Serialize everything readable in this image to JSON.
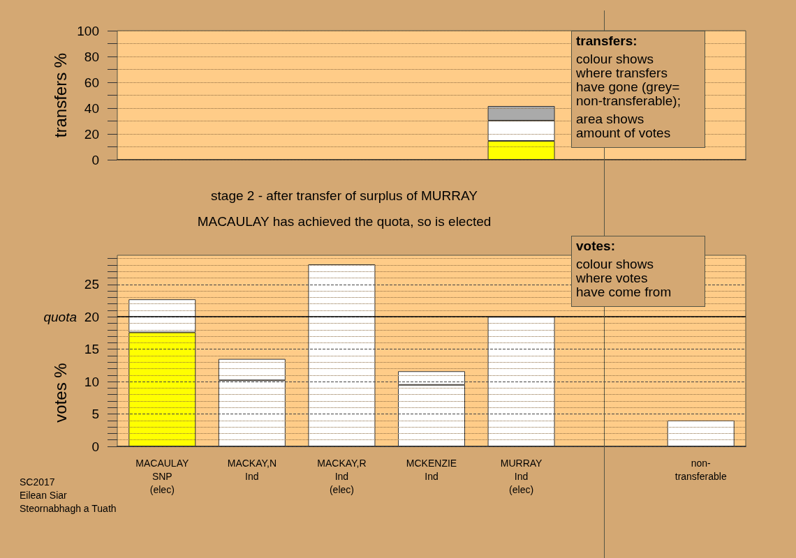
{
  "chart_data": [
    {
      "type": "bar",
      "ylabel": "transfers %",
      "categories": [
        null,
        null,
        null,
        null,
        null,
        null,
        null
      ],
      "stacked": true,
      "ylim": [
        0,
        100
      ],
      "yticks": [
        0,
        {
          "value": 10,
          "label": null
        },
        20,
        {
          "value": 30,
          "label": null
        },
        40,
        {
          "value": 50,
          "label": null
        },
        60,
        {
          "value": 70,
          "label": null
        },
        80,
        {
          "value": 90,
          "label": null
        },
        100
      ],
      "grid": "y",
      "tick_labels": "y",
      "series": [
        {
          "color": "#ffff00",
          "values": [
            null,
            null,
            null,
            null,
            14.6,
            null,
            null
          ]
        },
        {
          "color": "#ffffff",
          "values": [
            null,
            null,
            null,
            null,
            15.7,
            null,
            null
          ]
        },
        {
          "color": "#aaaaaa",
          "values": [
            null,
            null,
            null,
            null,
            11.3,
            null,
            null
          ]
        }
      ],
      "annotations": [
        "transfers:",
        "colour shows\nwhere transfers\nhave gone (grey=\nnon-transferable);",
        "area shows\namount of votes"
      ]
    },
    {
      "type": "bar",
      "title": "stage 2 - after transfer of surplus of MURRAY",
      "subtitle": "MACAULAY has achieved the quota, so is elected",
      "ylabel": "votes %",
      "categories": [
        "MACAULAY\nSNP\n(elec)",
        "MACKAY,N\nInd",
        "MACKAY,R\nInd\n(elec)",
        "MCKENZIE\nInd",
        "MURRAY\nInd\n(elec)",
        null,
        "non-\ntransferable"
      ],
      "stacked": true,
      "ylim": [
        0,
        29.5
      ],
      "yticks": [
        0,
        {
          "value": 1,
          "label": null
        },
        {
          "value": 2,
          "label": null
        },
        {
          "value": 3,
          "label": null
        },
        {
          "value": 4,
          "label": null
        },
        5,
        {
          "value": 6,
          "label": null
        },
        {
          "value": 7,
          "label": null
        },
        {
          "value": 8,
          "label": null
        },
        {
          "value": 9,
          "label": null
        },
        10,
        {
          "value": 11,
          "label": null
        },
        {
          "value": 12,
          "label": null
        },
        {
          "value": 13,
          "label": null
        },
        {
          "value": 14,
          "label": null
        },
        15,
        {
          "value": 16,
          "label": null
        },
        {
          "value": 17,
          "label": null
        },
        {
          "value": 18,
          "label": null
        },
        {
          "value": 19,
          "label": null
        },
        20,
        {
          "value": 21,
          "label": null
        },
        {
          "value": 22,
          "label": null
        },
        {
          "value": 23,
          "label": null
        },
        {
          "value": 24,
          "label": null
        },
        25,
        {
          "value": 26,
          "label": null
        },
        {
          "value": 27,
          "label": null
        },
        {
          "value": 28,
          "label": null
        },
        {
          "value": 29,
          "label": null
        }
      ],
      "grid": "y",
      "series": [
        {
          "color": "#ffff00",
          "values": [
            17.6,
            null,
            null,
            null,
            null,
            null,
            null
          ]
        },
        {
          "color": "#ffffff",
          "values": [
            null,
            10.2,
            28.1,
            9.5,
            20.0,
            null,
            4.0
          ]
        },
        {
          "color": "#ffffff",
          "values": [
            5.1,
            3.3,
            null,
            2.1,
            null,
            null,
            null
          ]
        }
      ],
      "ref_lines": [
        {
          "axis": "y",
          "value": 20,
          "label": "quota",
          "color": "#000000"
        }
      ],
      "annotations": [
        "votes:",
        "colour shows\nwhere votes\nhave come from",
        "SC2017\nEilean Siar\nSteornabhagh a Tuath"
      ]
    }
  ]
}
